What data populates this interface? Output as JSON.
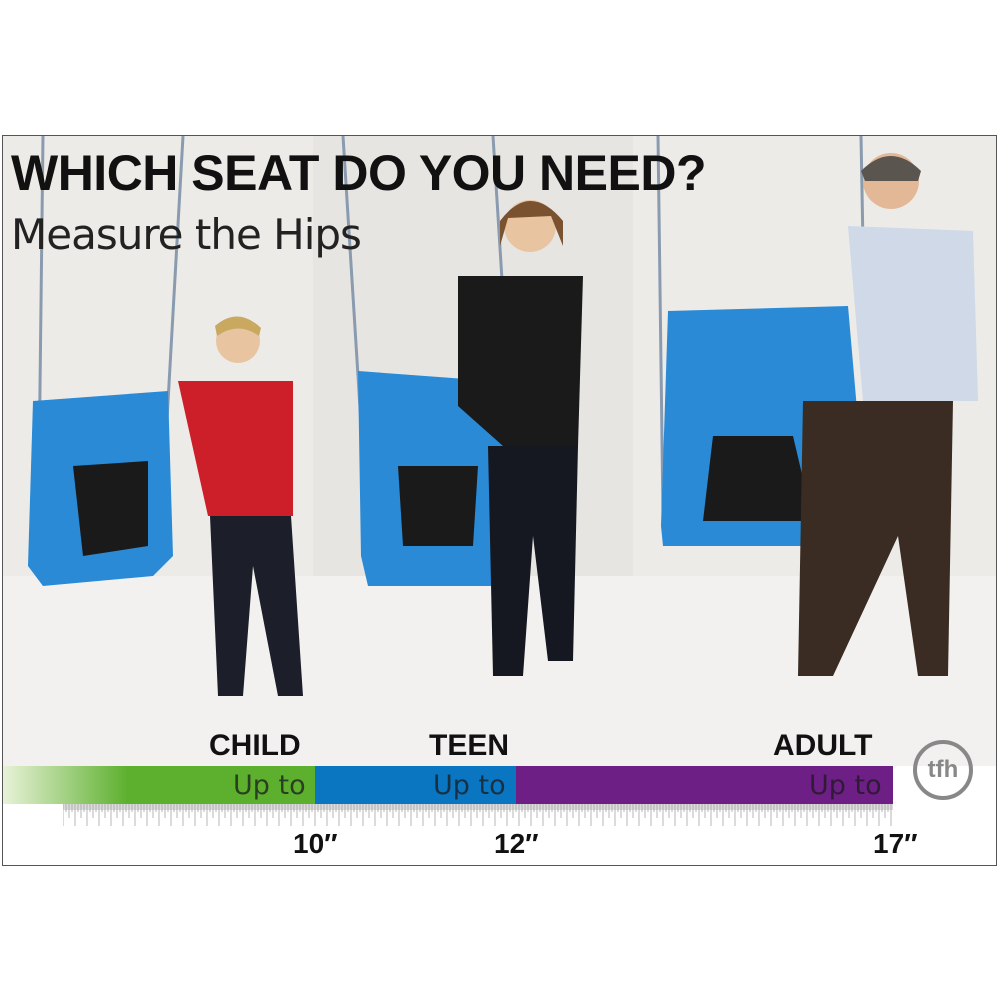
{
  "title": "WHICH SEAT DO YOU NEED?",
  "subtitle": "Measure the Hips",
  "sizes": [
    {
      "label": "CHILD",
      "range_label": "Up to",
      "measure": "10″",
      "color": "#5db02e"
    },
    {
      "label": "TEEN",
      "range_label": "Up to",
      "measure": "12″",
      "color": "#0a76c2"
    },
    {
      "label": "ADULT",
      "range_label": "Up to",
      "measure": "17″",
      "color": "#6e1f86"
    }
  ],
  "logo": "tfh",
  "colors": {
    "seat": "#2a8ad6",
    "background": "#ecebe8"
  }
}
